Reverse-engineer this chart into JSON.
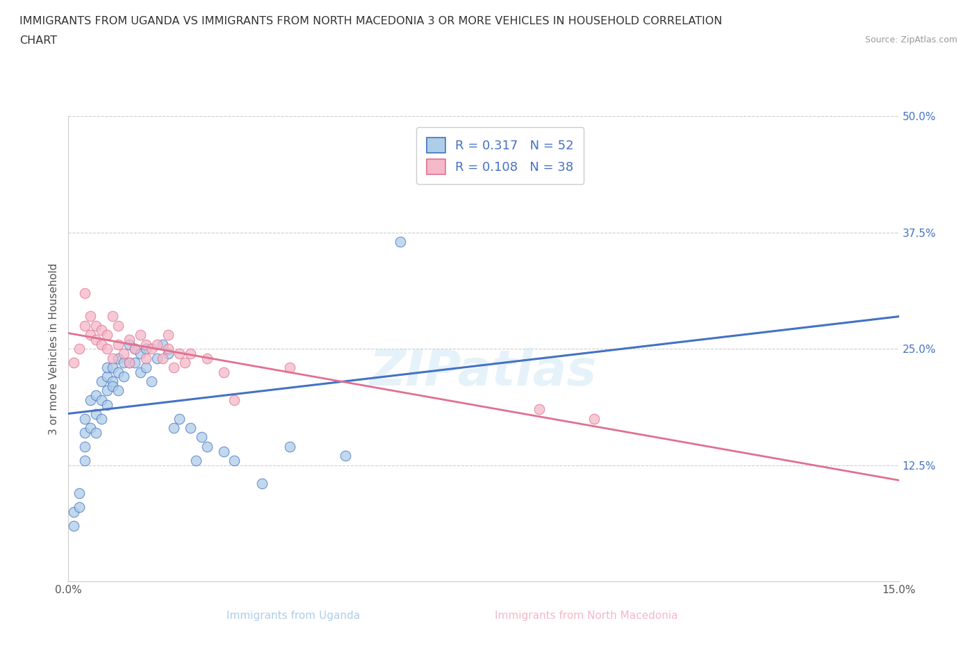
{
  "title_line1": "IMMIGRANTS FROM UGANDA VS IMMIGRANTS FROM NORTH MACEDONIA 3 OR MORE VEHICLES IN HOUSEHOLD CORRELATION",
  "title_line2": "CHART",
  "source": "Source: ZipAtlas.com",
  "xlabel_uganda": "Immigrants from Uganda",
  "xlabel_macedonia": "Immigrants from North Macedonia",
  "ylabel": "3 or more Vehicles in Household",
  "xlim": [
    0.0,
    0.15
  ],
  "ylim": [
    0.0,
    0.5
  ],
  "xtick_vals": [
    0.0,
    0.03,
    0.06,
    0.09,
    0.12,
    0.15
  ],
  "xtick_labels": [
    "0.0%",
    "",
    "",
    "",
    "",
    "15.0%"
  ],
  "ytick_vals": [
    0.0,
    0.125,
    0.25,
    0.375,
    0.5
  ],
  "ytick_labels": [
    "",
    "12.5%",
    "25.0%",
    "37.5%",
    "50.0%"
  ],
  "R_uganda": 0.317,
  "N_uganda": 52,
  "R_macedonia": 0.108,
  "N_macedonia": 38,
  "color_uganda_fill": "#aecde8",
  "color_uganda_edge": "#4472c4",
  "color_macedonia_fill": "#f4b8c8",
  "color_macedonia_edge": "#e07090",
  "color_uganda_line": "#4472c4",
  "color_macedonia_line": "#e07090",
  "color_dash_line": "#a0bcd8",
  "watermark": "ZIPatlas",
  "uganda_points": [
    [
      0.001,
      0.075
    ],
    [
      0.001,
      0.06
    ],
    [
      0.002,
      0.095
    ],
    [
      0.002,
      0.08
    ],
    [
      0.003,
      0.145
    ],
    [
      0.003,
      0.13
    ],
    [
      0.003,
      0.175
    ],
    [
      0.003,
      0.16
    ],
    [
      0.004,
      0.195
    ],
    [
      0.004,
      0.165
    ],
    [
      0.005,
      0.2
    ],
    [
      0.005,
      0.18
    ],
    [
      0.005,
      0.16
    ],
    [
      0.006,
      0.195
    ],
    [
      0.006,
      0.215
    ],
    [
      0.006,
      0.175
    ],
    [
      0.007,
      0.205
    ],
    [
      0.007,
      0.22
    ],
    [
      0.007,
      0.19
    ],
    [
      0.007,
      0.23
    ],
    [
      0.008,
      0.215
    ],
    [
      0.008,
      0.23
    ],
    [
      0.008,
      0.21
    ],
    [
      0.009,
      0.225
    ],
    [
      0.009,
      0.205
    ],
    [
      0.009,
      0.24
    ],
    [
      0.01,
      0.235
    ],
    [
      0.01,
      0.22
    ],
    [
      0.011,
      0.235
    ],
    [
      0.011,
      0.255
    ],
    [
      0.012,
      0.25
    ],
    [
      0.012,
      0.235
    ],
    [
      0.013,
      0.245
    ],
    [
      0.013,
      0.225
    ],
    [
      0.014,
      0.25
    ],
    [
      0.014,
      0.23
    ],
    [
      0.015,
      0.215
    ],
    [
      0.016,
      0.24
    ],
    [
      0.017,
      0.255
    ],
    [
      0.018,
      0.245
    ],
    [
      0.019,
      0.165
    ],
    [
      0.02,
      0.175
    ],
    [
      0.022,
      0.165
    ],
    [
      0.023,
      0.13
    ],
    [
      0.024,
      0.155
    ],
    [
      0.025,
      0.145
    ],
    [
      0.028,
      0.14
    ],
    [
      0.03,
      0.13
    ],
    [
      0.035,
      0.105
    ],
    [
      0.04,
      0.145
    ],
    [
      0.05,
      0.135
    ],
    [
      0.06,
      0.365
    ]
  ],
  "macedonia_points": [
    [
      0.001,
      0.235
    ],
    [
      0.002,
      0.25
    ],
    [
      0.003,
      0.275
    ],
    [
      0.003,
      0.31
    ],
    [
      0.004,
      0.285
    ],
    [
      0.004,
      0.265
    ],
    [
      0.005,
      0.26
    ],
    [
      0.005,
      0.275
    ],
    [
      0.006,
      0.27
    ],
    [
      0.006,
      0.255
    ],
    [
      0.007,
      0.265
    ],
    [
      0.007,
      0.25
    ],
    [
      0.008,
      0.285
    ],
    [
      0.008,
      0.24
    ],
    [
      0.009,
      0.255
    ],
    [
      0.009,
      0.275
    ],
    [
      0.01,
      0.245
    ],
    [
      0.011,
      0.26
    ],
    [
      0.011,
      0.235
    ],
    [
      0.012,
      0.25
    ],
    [
      0.013,
      0.265
    ],
    [
      0.014,
      0.24
    ],
    [
      0.014,
      0.255
    ],
    [
      0.015,
      0.25
    ],
    [
      0.016,
      0.255
    ],
    [
      0.017,
      0.24
    ],
    [
      0.018,
      0.25
    ],
    [
      0.018,
      0.265
    ],
    [
      0.019,
      0.23
    ],
    [
      0.02,
      0.245
    ],
    [
      0.021,
      0.235
    ],
    [
      0.022,
      0.245
    ],
    [
      0.025,
      0.24
    ],
    [
      0.028,
      0.225
    ],
    [
      0.03,
      0.195
    ],
    [
      0.04,
      0.23
    ],
    [
      0.085,
      0.185
    ],
    [
      0.095,
      0.175
    ]
  ]
}
